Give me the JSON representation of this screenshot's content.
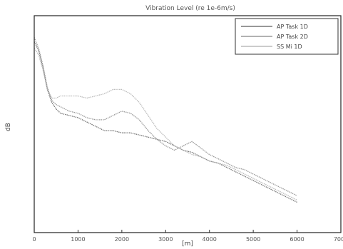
{
  "chart_data": {
    "type": "line",
    "title": "Vibration Level (re 1e-6m/s)",
    "xlabel": "[m]",
    "ylabel": "dB",
    "xlim": [
      0,
      7000
    ],
    "ylim": [
      0,
      1
    ],
    "x_ticks": [
      0,
      1000,
      2000,
      3000,
      4000,
      5000,
      6000,
      7000
    ],
    "x_tick_labels": [
      "0",
      "1000",
      "2000",
      "3000",
      "4000",
      "5000",
      "6000",
      "7000"
    ],
    "grid": false,
    "legend_position": "top-right",
    "series": [
      {
        "name": "AP Task 1D",
        "color": "#777777",
        "x": [
          0,
          100,
          200,
          300,
          400,
          500,
          600,
          800,
          1000,
          1200,
          1400,
          1600,
          1800,
          2000,
          2200,
          2400,
          2600,
          2800,
          3000,
          3200,
          3400,
          3600,
          3800,
          4000,
          4200,
          4400,
          4600,
          4800,
          5000,
          5200,
          5400,
          5600,
          5800,
          6000
        ],
        "y": [
          0.88,
          0.84,
          0.76,
          0.66,
          0.6,
          0.57,
          0.55,
          0.54,
          0.53,
          0.51,
          0.49,
          0.47,
          0.47,
          0.46,
          0.46,
          0.45,
          0.44,
          0.43,
          0.42,
          0.4,
          0.38,
          0.37,
          0.35,
          0.33,
          0.32,
          0.3,
          0.28,
          0.26,
          0.24,
          0.22,
          0.2,
          0.18,
          0.16,
          0.14
        ]
      },
      {
        "name": "AP Task 2D",
        "color": "#999999",
        "x": [
          0,
          100,
          200,
          300,
          400,
          500,
          600,
          800,
          1000,
          1200,
          1400,
          1600,
          1800,
          2000,
          2200,
          2400,
          2600,
          2800,
          3000,
          3200,
          3400,
          3600,
          3800,
          4000,
          4200,
          4400,
          4600,
          4800,
          5000,
          5200,
          5400,
          5600,
          5800,
          6000
        ],
        "y": [
          0.9,
          0.85,
          0.77,
          0.67,
          0.61,
          0.59,
          0.58,
          0.56,
          0.55,
          0.53,
          0.52,
          0.52,
          0.54,
          0.56,
          0.55,
          0.52,
          0.47,
          0.43,
          0.4,
          0.38,
          0.4,
          0.42,
          0.39,
          0.36,
          0.34,
          0.32,
          0.3,
          0.29,
          0.27,
          0.25,
          0.23,
          0.21,
          0.19,
          0.17
        ]
      },
      {
        "name": "SS Mi 1D",
        "color": "#bbbbbb",
        "x": [
          0,
          100,
          200,
          300,
          400,
          500,
          600,
          800,
          1000,
          1200,
          1400,
          1600,
          1800,
          2000,
          2200,
          2400,
          2600,
          2800,
          3000,
          3200,
          3400,
          3600,
          3800,
          4000,
          4200,
          4400,
          4600,
          4800,
          5000,
          5200,
          5400,
          5600,
          5800,
          6000
        ],
        "y": [
          0.85,
          0.82,
          0.75,
          0.66,
          0.62,
          0.62,
          0.63,
          0.63,
          0.63,
          0.62,
          0.63,
          0.64,
          0.66,
          0.66,
          0.64,
          0.6,
          0.54,
          0.48,
          0.44,
          0.4,
          0.38,
          0.36,
          0.35,
          0.33,
          0.32,
          0.31,
          0.29,
          0.27,
          0.25,
          0.23,
          0.21,
          0.19,
          0.17,
          0.15
        ]
      }
    ]
  }
}
